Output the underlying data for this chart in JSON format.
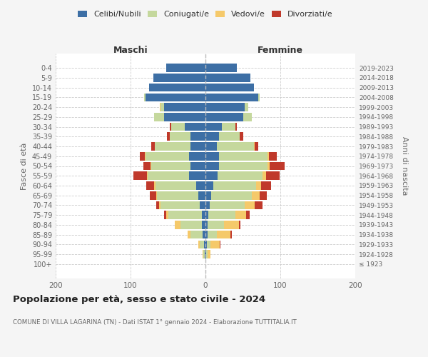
{
  "age_groups": [
    "100+",
    "95-99",
    "90-94",
    "85-89",
    "80-84",
    "75-79",
    "70-74",
    "65-69",
    "60-64",
    "55-59",
    "50-54",
    "45-49",
    "40-44",
    "35-39",
    "30-34",
    "25-29",
    "20-24",
    "15-19",
    "10-14",
    "5-9",
    "0-4"
  ],
  "birth_years": [
    "≤ 1923",
    "1924-1928",
    "1929-1933",
    "1934-1938",
    "1939-1943",
    "1944-1948",
    "1949-1953",
    "1954-1958",
    "1959-1963",
    "1964-1968",
    "1969-1973",
    "1974-1978",
    "1979-1983",
    "1984-1988",
    "1989-1993",
    "1994-1998",
    "1999-2003",
    "2004-2008",
    "2009-2013",
    "2014-2018",
    "2019-2023"
  ],
  "maschi": {
    "celibi": [
      0,
      1,
      2,
      4,
      5,
      5,
      8,
      10,
      12,
      22,
      20,
      22,
      20,
      20,
      28,
      55,
      55,
      80,
      75,
      70,
      52
    ],
    "coniugati": [
      0,
      2,
      6,
      16,
      28,
      45,
      52,
      55,
      55,
      55,
      52,
      58,
      48,
      28,
      18,
      14,
      5,
      2,
      0,
      0,
      0
    ],
    "vedovi": [
      0,
      1,
      2,
      4,
      8,
      2,
      2,
      1,
      2,
      1,
      1,
      1,
      0,
      0,
      0,
      0,
      1,
      0,
      0,
      0,
      0
    ],
    "divorziati": [
      0,
      0,
      0,
      0,
      0,
      3,
      4,
      8,
      10,
      18,
      10,
      7,
      4,
      3,
      2,
      0,
      0,
      0,
      0,
      0,
      0
    ]
  },
  "femmine": {
    "nubili": [
      0,
      1,
      2,
      3,
      3,
      4,
      6,
      8,
      10,
      16,
      18,
      18,
      15,
      18,
      22,
      50,
      52,
      70,
      65,
      60,
      42
    ],
    "coniugate": [
      0,
      2,
      5,
      12,
      22,
      36,
      46,
      54,
      58,
      60,
      65,
      65,
      50,
      28,
      18,
      12,
      5,
      2,
      0,
      0,
      0
    ],
    "vedove": [
      0,
      4,
      12,
      18,
      20,
      14,
      14,
      10,
      6,
      5,
      3,
      2,
      1,
      0,
      0,
      0,
      0,
      0,
      0,
      0,
      0
    ],
    "divorziate": [
      0,
      0,
      1,
      2,
      2,
      5,
      10,
      10,
      14,
      18,
      20,
      10,
      4,
      4,
      2,
      0,
      0,
      0,
      0,
      0,
      0
    ]
  },
  "colors": {
    "celibi": "#3d6fa5",
    "coniugati": "#c5d89d",
    "vedovi": "#f5c96a",
    "divorziati": "#c0392b"
  },
  "legend_labels": [
    "Celibi/Nubili",
    "Coniugati/e",
    "Vedovi/e",
    "Divorziati/e"
  ],
  "title": "Popolazione per età, sesso e stato civile - 2024",
  "subtitle": "COMUNE DI VILLA LAGARINA (TN) - Dati ISTAT 1° gennaio 2024 - Elaborazione TUTTITALIA.IT",
  "xlabel_left": "Maschi",
  "xlabel_right": "Femmine",
  "ylabel_left": "Fasce di età",
  "ylabel_right": "Anni di nascita",
  "xlim": 200,
  "bg_color": "#f5f5f5",
  "plot_bg_color": "#ffffff"
}
